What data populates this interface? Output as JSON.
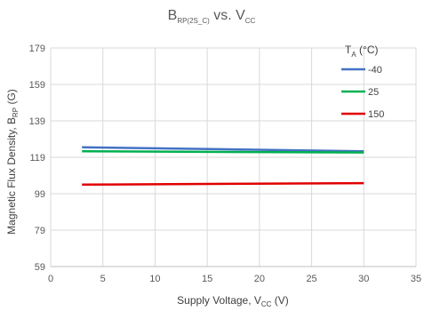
{
  "chart_data": {
    "type": "line",
    "title": {
      "main": "B",
      "main_sub": "RP(2S_C)",
      "mid": " vs. V",
      "mid_sub": "CC"
    },
    "xlabel": {
      "main": "Supply Voltage, V",
      "sub": "CC",
      "tail": " (V)"
    },
    "ylabel": {
      "main": "Magnetic Flux Density, B",
      "sub": "RP",
      "tail": " (G)"
    },
    "xlim": [
      0,
      35
    ],
    "ylim": [
      59,
      179
    ],
    "xticks": [
      "0",
      "5",
      "10",
      "15",
      "20",
      "25",
      "30",
      "35"
    ],
    "yticks": [
      "59",
      "79",
      "99",
      "119",
      "139",
      "159",
      "179"
    ],
    "grid": true,
    "legend": {
      "title_main": "T",
      "title_sub": "A",
      "title_tail": " (°C)",
      "placement": "top-right"
    },
    "series": [
      {
        "name": "-40",
        "color": "#4472C4",
        "x": [
          3,
          30
        ],
        "y": [
          124.5,
          122.3
        ]
      },
      {
        "name": "25",
        "color": "#00B050",
        "x": [
          3,
          30
        ],
        "y": [
          122.3,
          121.6
        ]
      },
      {
        "name": "150",
        "color": "#E00000",
        "x": [
          3,
          30
        ],
        "y": [
          104.0,
          104.8
        ]
      }
    ]
  }
}
